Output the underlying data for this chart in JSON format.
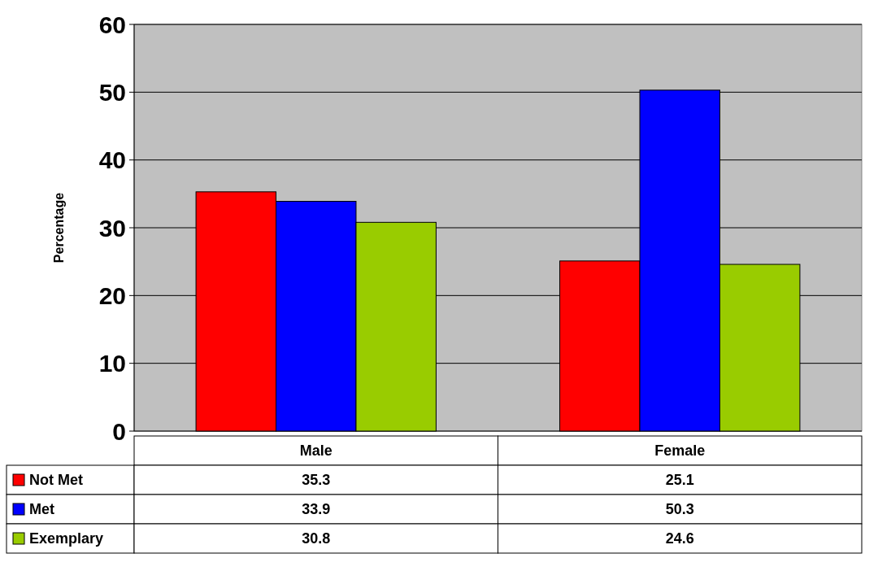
{
  "chart_data": {
    "type": "bar",
    "ylabel": "Percentage",
    "categories": [
      "Male",
      "Female"
    ],
    "series": [
      {
        "name": "Not Met",
        "color": "#ff0000",
        "values": [
          35.3,
          25.1
        ]
      },
      {
        "name": "Met",
        "color": "#0000ff",
        "values": [
          33.9,
          50.3
        ]
      },
      {
        "name": "Exemplary",
        "color": "#99cc00",
        "values": [
          30.8,
          24.6
        ]
      }
    ],
    "ylim": [
      0,
      60
    ],
    "yticks": [
      0,
      10,
      20,
      30,
      40,
      50,
      60
    ],
    "grid": "y",
    "legend": "bottom",
    "data_labels": true
  }
}
